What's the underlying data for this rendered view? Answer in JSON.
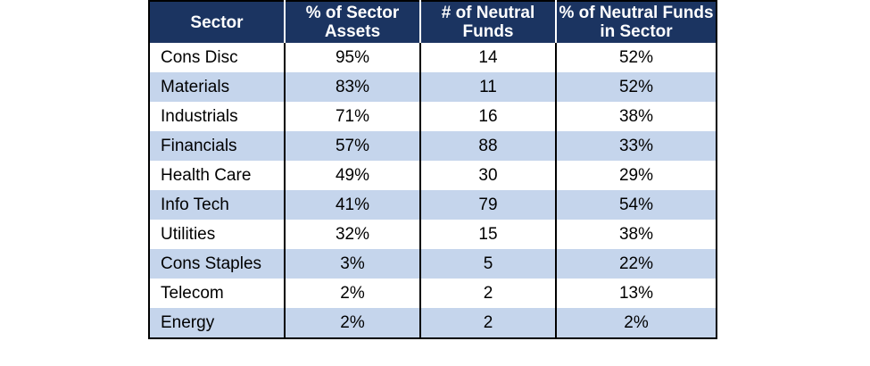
{
  "table": {
    "headers": [
      "Sector",
      "% of Sector Assets",
      "# of Neutral Funds",
      "% of Neutral Funds in Sector"
    ],
    "rows": [
      [
        "Cons Disc",
        "95%",
        "14",
        "52%"
      ],
      [
        "Materials",
        "83%",
        "11",
        "52%"
      ],
      [
        "Industrials",
        "71%",
        "16",
        "38%"
      ],
      [
        "Financials",
        "57%",
        "88",
        "33%"
      ],
      [
        "Health Care",
        "49%",
        "30",
        "29%"
      ],
      [
        "Info Tech",
        "41%",
        "79",
        "54%"
      ],
      [
        "Utilities",
        "32%",
        "15",
        "38%"
      ],
      [
        "Cons Staples",
        "3%",
        "5",
        "22%"
      ],
      [
        "Telecom",
        "2%",
        "2",
        "13%"
      ],
      [
        "Energy",
        "2%",
        "2",
        "2%"
      ]
    ]
  },
  "colors": {
    "header_bg": "#1b3461",
    "header_text": "#ffffff",
    "band": "#c5d5ec"
  }
}
